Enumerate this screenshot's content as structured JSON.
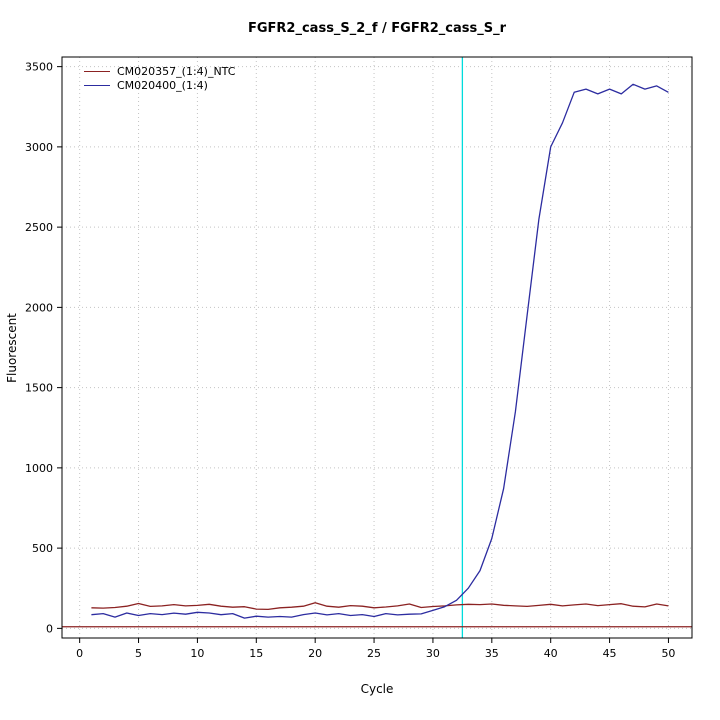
{
  "page": {
    "background": "#ffffff"
  },
  "chart_data": {
    "type": "line",
    "title": "FGFR2_cass_S_2_f / FGFR2_cass_S_r",
    "xlabel": "Cycle",
    "ylabel": "Fluorescent",
    "xticks": [
      0,
      5,
      10,
      15,
      20,
      25,
      30,
      35,
      40,
      45,
      50
    ],
    "yticks": [
      0,
      500,
      1000,
      1500,
      2000,
      2500,
      3000,
      3500
    ],
    "xlim": [
      -1.5,
      52
    ],
    "ylim": [
      -60,
      3560
    ],
    "grid": "dotted",
    "grid_color": "#c4c4c4",
    "legend_position": "top-left",
    "threshold_line": {
      "y": 10,
      "color": "#8b2222"
    },
    "ct_marker_line": {
      "x": 32.5,
      "color": "#00dcdc"
    },
    "series": [
      {
        "name": "CM020357_(1:4)_NTC",
        "color": "#8b2222",
        "x_start": 1,
        "values": [
          128,
          126,
          130,
          138,
          155,
          137,
          140,
          148,
          140,
          143,
          150,
          138,
          132,
          135,
          120,
          118,
          128,
          132,
          138,
          160,
          138,
          132,
          142,
          138,
          128,
          133,
          140,
          152,
          130,
          136,
          140,
          146,
          150,
          148,
          152,
          144,
          140,
          137,
          143,
          150,
          140,
          146,
          152,
          142,
          148,
          154,
          138,
          134,
          152,
          140
        ]
      },
      {
        "name": "CM020400_(1:4)",
        "color": "#2c2ca0",
        "x_start": 1,
        "values": [
          85,
          92,
          70,
          96,
          80,
          92,
          86,
          95,
          88,
          100,
          96,
          85,
          92,
          64,
          76,
          70,
          74,
          70,
          86,
          96,
          84,
          92,
          80,
          86,
          74,
          92,
          84,
          88,
          90,
          112,
          135,
          175,
          250,
          360,
          560,
          870,
          1350,
          1950,
          2550,
          3000,
          3150,
          3340,
          3360,
          3330,
          3360,
          3330,
          3390,
          3360,
          3380,
          3340
        ]
      }
    ]
  }
}
